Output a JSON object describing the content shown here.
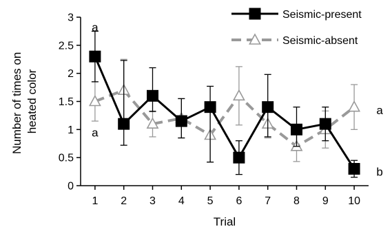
{
  "chart_data": {
    "type": "line",
    "xlabel": "Trial",
    "ylabel": "Number of times on heated color",
    "ylabel_lines": [
      "Number of times on",
      "heated color"
    ],
    "x": [
      1,
      2,
      3,
      4,
      5,
      6,
      7,
      8,
      9,
      10
    ],
    "x_tick_labels": [
      "1",
      "2",
      "3",
      "4",
      "5",
      "6",
      "7",
      "8",
      "9",
      "10"
    ],
    "ylim": [
      0,
      3
    ],
    "y_ticks": [
      0,
      0.5,
      1,
      1.5,
      2,
      2.5,
      3
    ],
    "y_tick_labels": [
      "0",
      "0.5",
      "1",
      "1.5",
      "2",
      "2.5",
      "3"
    ],
    "grid": false,
    "legend_position": "top-right",
    "series": [
      {
        "name": "Seismic-present",
        "values": [
          2.3,
          1.1,
          1.6,
          1.15,
          1.4,
          0.5,
          1.4,
          1.0,
          1.1,
          0.3
        ],
        "err_low": [
          0.45,
          0.38,
          0.28,
          0.3,
          0.98,
          0.3,
          0.53,
          0.3,
          0.3,
          0.15
        ],
        "err_high": [
          0.45,
          1.13,
          0.5,
          0.4,
          0.37,
          0.3,
          0.58,
          0.4,
          0.3,
          0.15
        ],
        "color": "#000000",
        "marker": "square",
        "line_style": "solid"
      },
      {
        "name": "Seismic-absent",
        "values": [
          1.5,
          1.7,
          1.1,
          1.2,
          0.9,
          1.6,
          1.1,
          0.7,
          1.0,
          1.4
        ],
        "err_low": [
          0.35,
          0.55,
          0.23,
          0.35,
          0.48,
          0.52,
          0.25,
          0.27,
          0.33,
          0.4
        ],
        "err_high": [
          0.35,
          0.55,
          0.23,
          0.35,
          0.48,
          0.52,
          0.25,
          0.27,
          0.33,
          0.4
        ],
        "color": "#999999",
        "marker": "triangle",
        "line_style": "dashed"
      }
    ],
    "annotations": [
      {
        "text": "a",
        "x": 1,
        "y": 2.82
      },
      {
        "text": "a",
        "x": 1,
        "y": 0.95
      },
      {
        "text": "a",
        "x": 10,
        "y": 1.35
      },
      {
        "text": "b",
        "x": 10,
        "y": 0.25
      }
    ]
  }
}
